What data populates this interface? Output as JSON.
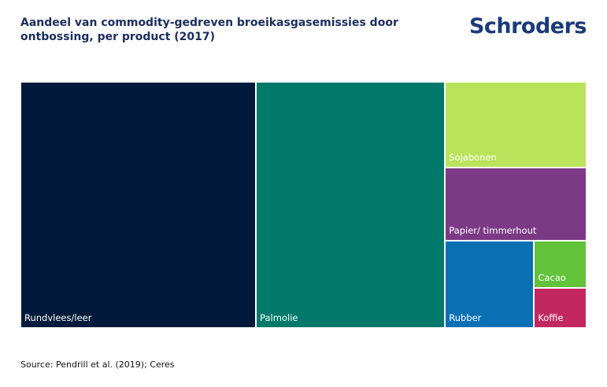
{
  "chart_data": {
    "type": "treemap",
    "title": "Aandeel van commodity-gedreven broeikasgasemissies door ontbossing, per product (2017)",
    "brand": "Schroders",
    "source": "Source: Pendrill et al. (2019); Ceres",
    "categories": [
      "Rundvlees/leer",
      "Palmolie",
      "Sojabonen",
      "Papier/ timmerhout",
      "Rubber",
      "Cacao",
      "Koffie"
    ],
    "values": [
      41.6,
      33.4,
      8.7,
      7.4,
      5.6,
      1.8,
      1.5
    ],
    "colors": [
      "#011a3b",
      "#00786a",
      "#b9e35b",
      "#7b3986",
      "#0b6fb4",
      "#62c23a",
      "#c2285f"
    ]
  }
}
